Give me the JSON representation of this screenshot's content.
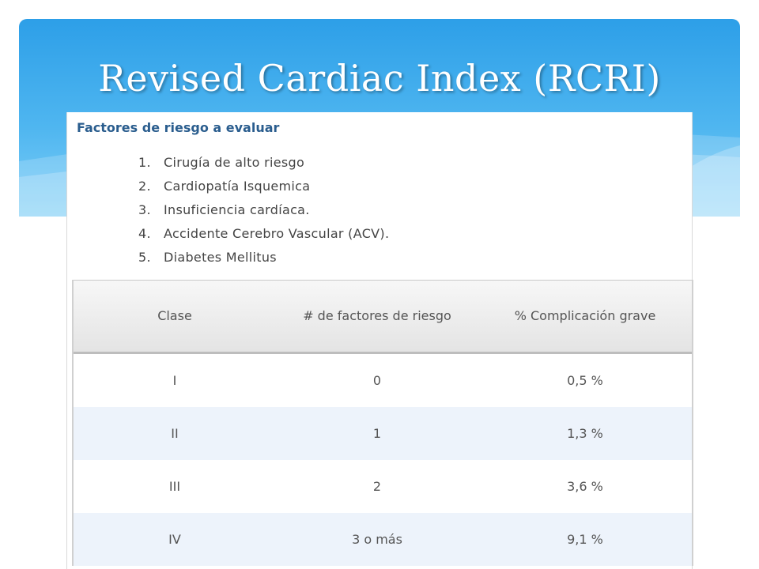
{
  "slide": {
    "title": "Revised Cardiac Index (RCRI)"
  },
  "panel": {
    "heading": "Factores de riesgo a evaluar",
    "risk_factors": [
      {
        "num": "1.",
        "text": "Cirugía de alto riesgo"
      },
      {
        "num": "2.",
        "text": "Cardiopatía Isquemica"
      },
      {
        "num": "3.",
        "text": "Insuficiencia cardíaca."
      },
      {
        "num": "4.",
        "text": "Accidente Cerebro Vascular (ACV)."
      },
      {
        "num": "5.",
        "text": "Diabetes Mellitus"
      }
    ]
  },
  "table": {
    "headers": [
      "Clase",
      "# de factores de riesgo",
      "% Complicación grave"
    ],
    "rows": [
      [
        "I",
        "0",
        "0,5 %"
      ],
      [
        "II",
        "1",
        "1,3 %"
      ],
      [
        "III",
        "2",
        "3,6 %"
      ],
      [
        "IV",
        "3 o más",
        "9,1 %"
      ]
    ]
  },
  "colors": {
    "banner_top": "#2d9fe8",
    "banner_bottom": "#7fcff7",
    "heading": "#2a5d8e",
    "row_alt": "#edf3fb"
  }
}
